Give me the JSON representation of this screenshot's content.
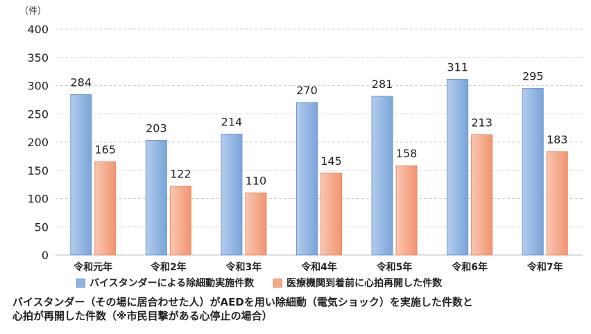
{
  "chart_data": {
    "type": "bar",
    "unit_label": "（件）",
    "categories": [
      "令和元年",
      "令和2年",
      "令和3年",
      "令和4年",
      "令和5年",
      "令和6年",
      "令和7年"
    ],
    "series": [
      {
        "name": "バイスタンダーによる除細動実施件数",
        "values": [
          284,
          203,
          214,
          270,
          281,
          311,
          295
        ],
        "color": "#8fb3e0"
      },
      {
        "name": "医療機関到着前に心拍再開した件数",
        "values": [
          165,
          122,
          110,
          145,
          158,
          213,
          183
        ],
        "color": "#f5a98a"
      }
    ],
    "ylim": [
      0,
      400
    ],
    "yticks": [
      0,
      50,
      100,
      150,
      200,
      250,
      300,
      350,
      400
    ],
    "grid": true,
    "legend_position": "bottom"
  },
  "caption": {
    "line1": "バイスタンダー（その場に居合わせた人）がAEDを用い除細動（電気ショック）を実施した件数と",
    "line2": "心拍が再開した件数（※市民目撃がある心停止の場合）"
  }
}
